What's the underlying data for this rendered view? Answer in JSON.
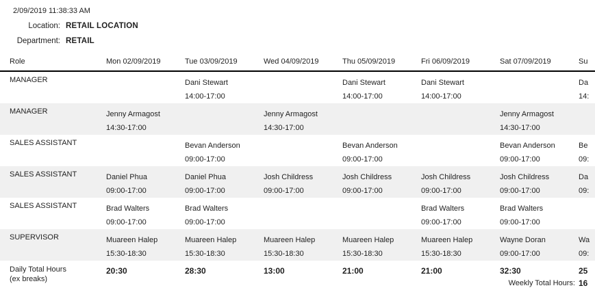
{
  "report": {
    "timestamp": "2/09/2019 11:38:33 AM",
    "location_label": "Location:",
    "location_value": "RETAIL LOCATION",
    "department_label": "Department:",
    "department_value": "RETAIL"
  },
  "colors": {
    "alt_row_bg": "#f0f0f0",
    "header_rule": "#000000",
    "text": "#1f1f1f"
  },
  "table": {
    "columns": [
      "Role",
      "Mon 02/09/2019",
      "Tue 03/09/2019",
      "Wed 04/09/2019",
      "Thu 05/09/2019",
      "Fri 06/09/2019",
      "Sat 07/09/2019",
      "Su"
    ],
    "rows": [
      {
        "role": "MANAGER",
        "shading": "white",
        "shifts": [
          {
            "name": "",
            "time": ""
          },
          {
            "name": "Dani Stewart",
            "time": "14:00-17:00"
          },
          {
            "name": "",
            "time": ""
          },
          {
            "name": "Dani Stewart",
            "time": "14:00-17:00"
          },
          {
            "name": "Dani Stewart",
            "time": "14:00-17:00"
          },
          {
            "name": "",
            "time": ""
          },
          {
            "name": "Da",
            "time": "14:"
          }
        ]
      },
      {
        "role": "MANAGER",
        "shading": "gray",
        "shifts": [
          {
            "name": "Jenny Armagost",
            "time": "14:30-17:00"
          },
          {
            "name": "",
            "time": ""
          },
          {
            "name": "Jenny Armagost",
            "time": "14:30-17:00"
          },
          {
            "name": "",
            "time": ""
          },
          {
            "name": "",
            "time": ""
          },
          {
            "name": "Jenny Armagost",
            "time": "14:30-17:00"
          },
          {
            "name": "",
            "time": ""
          }
        ]
      },
      {
        "role": "SALES ASSISTANT",
        "shading": "white",
        "shifts": [
          {
            "name": "",
            "time": ""
          },
          {
            "name": "Bevan Anderson",
            "time": "09:00-17:00"
          },
          {
            "name": "",
            "time": ""
          },
          {
            "name": "Bevan Anderson",
            "time": "09:00-17:00"
          },
          {
            "name": "",
            "time": ""
          },
          {
            "name": "Bevan Anderson",
            "time": "09:00-17:00"
          },
          {
            "name": "Be",
            "time": "09:"
          }
        ]
      },
      {
        "role": "SALES ASSISTANT",
        "shading": "gray",
        "shifts": [
          {
            "name": "Daniel Phua",
            "time": "09:00-17:00"
          },
          {
            "name": "Daniel Phua",
            "time": "09:00-17:00"
          },
          {
            "name": "Josh Childress",
            "time": "09:00-17:00"
          },
          {
            "name": "Josh Childress",
            "time": "09:00-17:00"
          },
          {
            "name": "Josh Childress",
            "time": "09:00-17:00"
          },
          {
            "name": "Josh Childress",
            "time": "09:00-17:00"
          },
          {
            "name": "Da",
            "time": "09:"
          }
        ]
      },
      {
        "role": "SALES ASSISTANT",
        "shading": "white",
        "shifts": [
          {
            "name": "Brad Walters",
            "time": "09:00-17:00"
          },
          {
            "name": "Brad Walters",
            "time": "09:00-17:00"
          },
          {
            "name": "",
            "time": ""
          },
          {
            "name": "",
            "time": ""
          },
          {
            "name": "Brad Walters",
            "time": "09:00-17:00"
          },
          {
            "name": "Brad Walters",
            "time": "09:00-17:00"
          },
          {
            "name": "",
            "time": ""
          }
        ]
      },
      {
        "role": "SUPERVISOR",
        "shading": "gray",
        "shifts": [
          {
            "name": "Muareen Halep",
            "time": "15:30-18:30"
          },
          {
            "name": "Muareen Halep",
            "time": "15:30-18:30"
          },
          {
            "name": "Muareen Halep",
            "time": "15:30-18:30"
          },
          {
            "name": "Muareen Halep",
            "time": "15:30-18:30"
          },
          {
            "name": "Muareen Halep",
            "time": "15:30-18:30"
          },
          {
            "name": "Wayne Doran",
            "time": "09:00-17:00"
          },
          {
            "name": "Wa",
            "time": "09:"
          }
        ]
      }
    ],
    "totals": {
      "label": "Daily Total Hours",
      "sublabel": "(ex breaks)",
      "values": [
        "20:30",
        "28:30",
        "13:00",
        "21:00",
        "21:00",
        "32:30",
        "25"
      ],
      "weekly_label": "Weekly Total Hours:",
      "weekly_value": "16"
    }
  }
}
